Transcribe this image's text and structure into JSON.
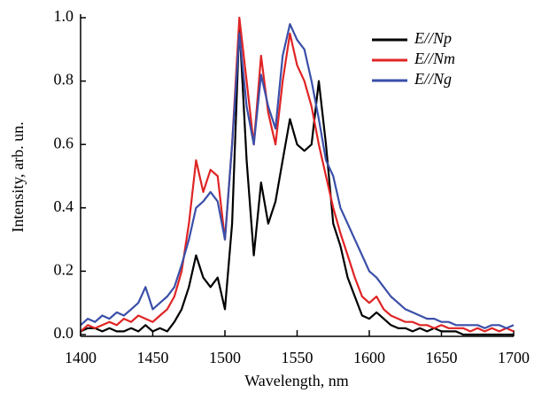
{
  "chart_data": {
    "type": "line",
    "xlabel": "Wavelength, nm",
    "ylabel": "Intensity, arb. un.",
    "x": [
      1400,
      1405,
      1410,
      1415,
      1420,
      1425,
      1430,
      1435,
      1440,
      1445,
      1450,
      1455,
      1460,
      1465,
      1470,
      1475,
      1480,
      1485,
      1490,
      1495,
      1500,
      1505,
      1510,
      1515,
      1520,
      1525,
      1530,
      1535,
      1540,
      1545,
      1550,
      1555,
      1560,
      1565,
      1570,
      1575,
      1580,
      1585,
      1590,
      1595,
      1600,
      1605,
      1610,
      1615,
      1620,
      1625,
      1630,
      1635,
      1640,
      1645,
      1650,
      1655,
      1660,
      1665,
      1670,
      1675,
      1680,
      1685,
      1690,
      1695,
      1700
    ],
    "series": [
      {
        "name": "E//Np",
        "color": "#000000",
        "values": [
          0.01,
          0.02,
          0.02,
          0.01,
          0.02,
          0.01,
          0.01,
          0.02,
          0.01,
          0.03,
          0.01,
          0.02,
          0.01,
          0.04,
          0.08,
          0.15,
          0.25,
          0.18,
          0.15,
          0.18,
          0.08,
          0.35,
          0.98,
          0.55,
          0.25,
          0.48,
          0.35,
          0.42,
          0.55,
          0.68,
          0.6,
          0.58,
          0.6,
          0.8,
          0.6,
          0.35,
          0.28,
          0.18,
          0.12,
          0.06,
          0.05,
          0.07,
          0.05,
          0.03,
          0.02,
          0.02,
          0.01,
          0.02,
          0.01,
          0.02,
          0.01,
          0.01,
          0.01,
          0.0,
          0,
          0,
          0,
          0,
          0,
          0,
          0
        ]
      },
      {
        "name": "E//Nm",
        "color": "#e02424",
        "values": [
          0.01,
          0.03,
          0.02,
          0.03,
          0.04,
          0.03,
          0.05,
          0.04,
          0.06,
          0.05,
          0.04,
          0.06,
          0.08,
          0.12,
          0.2,
          0.35,
          0.55,
          0.45,
          0.52,
          0.5,
          0.3,
          0.6,
          1.0,
          0.8,
          0.6,
          0.88,
          0.7,
          0.6,
          0.8,
          0.95,
          0.85,
          0.8,
          0.72,
          0.6,
          0.5,
          0.4,
          0.32,
          0.25,
          0.18,
          0.12,
          0.1,
          0.12,
          0.08,
          0.06,
          0.05,
          0.04,
          0.04,
          0.03,
          0.03,
          0.02,
          0.03,
          0.02,
          0.02,
          0.02,
          0.01,
          0.02,
          0.01,
          0.02,
          0.01,
          0.02,
          0.01
        ]
      },
      {
        "name": "E//Ng",
        "color": "#3a4fa8",
        "values": [
          0.03,
          0.05,
          0.04,
          0.06,
          0.05,
          0.07,
          0.06,
          0.08,
          0.1,
          0.15,
          0.08,
          0.1,
          0.12,
          0.15,
          0.22,
          0.3,
          0.4,
          0.42,
          0.45,
          0.42,
          0.3,
          0.6,
          0.95,
          0.72,
          0.6,
          0.82,
          0.72,
          0.65,
          0.88,
          0.98,
          0.93,
          0.9,
          0.8,
          0.68,
          0.55,
          0.5,
          0.4,
          0.35,
          0.3,
          0.25,
          0.2,
          0.18,
          0.15,
          0.12,
          0.1,
          0.08,
          0.07,
          0.06,
          0.05,
          0.05,
          0.04,
          0.04,
          0.03,
          0.03,
          0.03,
          0.03,
          0.02,
          0.03,
          0.03,
          0.02,
          0.03
        ]
      }
    ],
    "xlim": [
      1400,
      1700
    ],
    "xticks": [
      1400,
      1450,
      1500,
      1550,
      1600,
      1650,
      1700
    ],
    "ylim": [
      0,
      1.0
    ],
    "yticks": [
      {
        "value": 0,
        "label": "0.0"
      },
      0.2,
      0.4,
      0.6,
      0.8,
      {
        "value": 1.0,
        "label": "1.0"
      }
    ],
    "legend": "upper-right"
  }
}
